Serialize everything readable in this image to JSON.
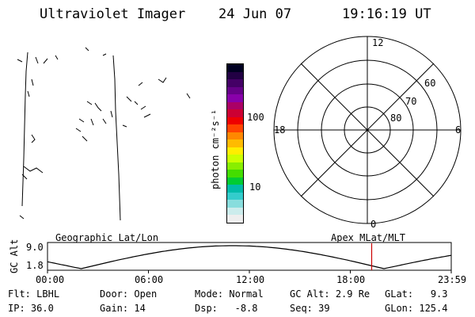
{
  "header": {
    "title": "Ultraviolet Imager",
    "date": "24 Jun 07",
    "time": "19:16:19 UT"
  },
  "colorbar": {
    "label": "photon cm⁻²s⁻¹",
    "tick_100": "100",
    "tick_10": "10",
    "colors": [
      "#000022",
      "#220044",
      "#440066",
      "#660088",
      "#8800aa",
      "#aa0066",
      "#cc0033",
      "#ee0000",
      "#ff4400",
      "#ff8800",
      "#ffbb00",
      "#ffee00",
      "#ccff00",
      "#88ee00",
      "#44dd00",
      "#00cc33",
      "#00bbaa",
      "#33cccc",
      "#88dddd",
      "#ccecec",
      "#eeeeee"
    ]
  },
  "polar": {
    "mlt_top": "12",
    "mlt_left": "18",
    "mlt_right": "6",
    "mlt_bottom": "0",
    "lat_60": "60",
    "lat_70": "70",
    "lat_80": "80"
  },
  "orbit": {
    "left_label": "Geographic Lat/Lon",
    "right_label": "Apex MLat/MLT",
    "axis_title": "GC Alt",
    "y_top": "9.0",
    "y_bottom": "1.8",
    "x_ticks": [
      "00:00",
      "06:00",
      "12:00",
      "18:00",
      "23:59"
    ],
    "current_time_marker_hours": 19.27,
    "marker_color": "#cc0000"
  },
  "info": {
    "flt_label": "Flt:",
    "flt_value": "LBHL",
    "door_label": "Door:",
    "door_value": "Open",
    "mode_label": "Mode:",
    "mode_value": "Normal",
    "gcalt_label": "GC Alt:",
    "gcalt_value": "2.9 Re",
    "glat_label": "GLat:",
    "glat_value": "9.3",
    "ip_label": "IP:",
    "ip_value": "36.0",
    "gain_label": "Gain:",
    "gain_value": "14",
    "dsp_label": "Dsp:",
    "dsp_value": "-8.8",
    "seq_label": "Seq:",
    "seq_value": "39",
    "glon_label": "GLon:",
    "glon_value": "125.4"
  }
}
